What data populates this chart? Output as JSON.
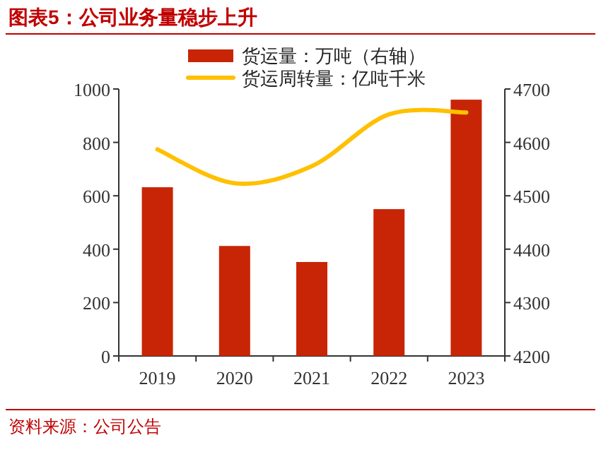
{
  "chart_data": {
    "type": "bar",
    "title": "图表5：公司业务量稳步上升",
    "annotations": [
      "资料来源：公司公告"
    ],
    "categories": [
      "2019",
      "2020",
      "2021",
      "2022",
      "2023"
    ],
    "series": [
      {
        "name": "货运量：万吨（右轴）",
        "axis": "y2",
        "color": "#c82506",
        "values": [
          4516,
          4406,
          4376,
          4475,
          4680
        ]
      },
      {
        "name": "货运周转量：亿吨千米",
        "type": "line",
        "color": "#ffc000",
        "values": [
          774,
          647,
          711,
          905,
          912
        ]
      }
    ],
    "ylim": [
      0,
      1000
    ],
    "yticks": [
      0,
      200,
      400,
      600,
      800,
      1000
    ],
    "y2lim": [
      4200,
      4700
    ],
    "y2ticks": [
      4200,
      4300,
      4400,
      4500,
      4600,
      4700
    ],
    "legend": "top"
  }
}
